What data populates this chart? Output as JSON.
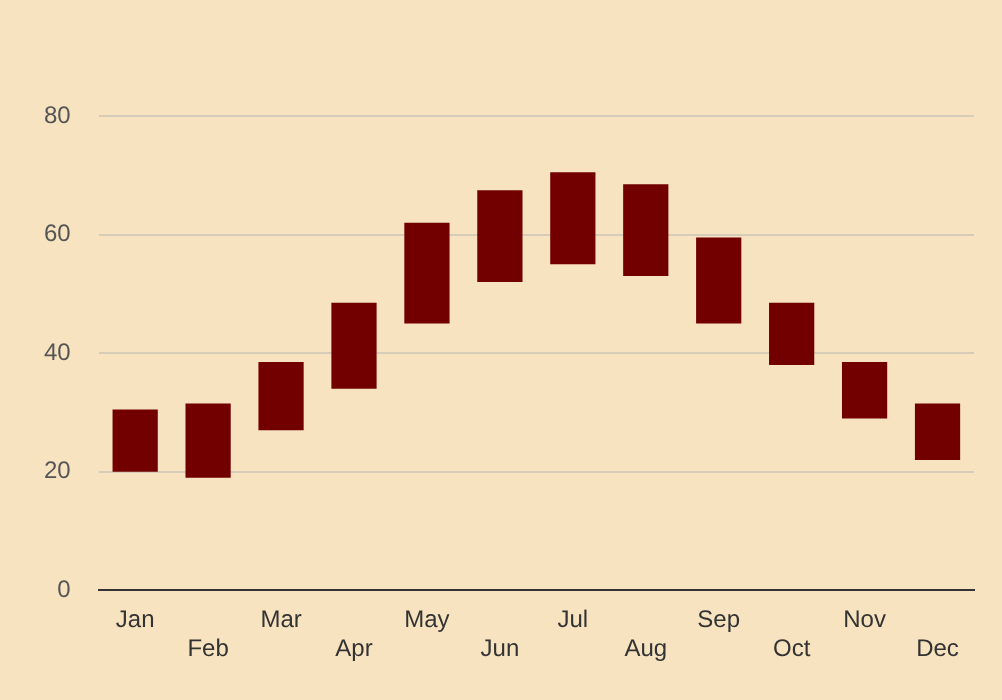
{
  "chart_data": {
    "type": "bar",
    "categories": [
      "Jan",
      "Feb",
      "Mar",
      "Apr",
      "May",
      "Jun",
      "Jul",
      "Aug",
      "Sep",
      "Oct",
      "Nov",
      "Dec"
    ],
    "values": [
      10.5,
      12.5,
      11.5,
      14.5,
      17,
      15.5,
      15.5,
      15.5,
      14.5,
      10.5,
      9.5,
      9.5
    ],
    "base": [
      20,
      19,
      27,
      34,
      45,
      52,
      55,
      53,
      45,
      38,
      29,
      22
    ],
    "color": "#720000",
    "ylim": [
      0,
      80
    ],
    "yticks": [
      0,
      20,
      40,
      60,
      80
    ],
    "grid": "y",
    "legend": false
  }
}
